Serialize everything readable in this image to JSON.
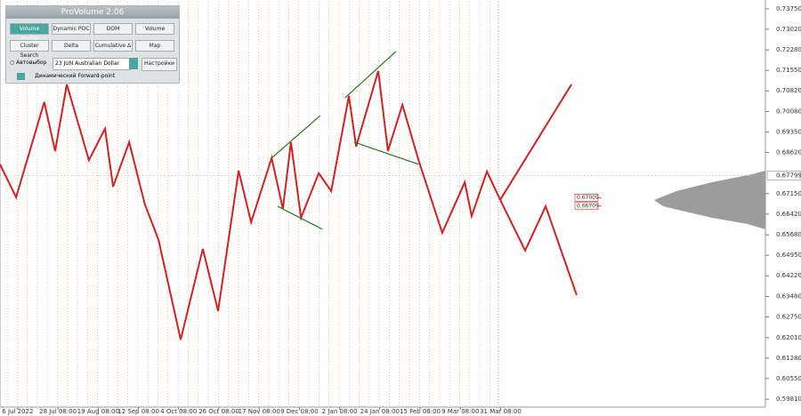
{
  "chart_data": {
    "type": "line",
    "xlim": [
      -0.44,
      18.58
    ],
    "ylim": [
      0.5953,
      0.74
    ],
    "xticks": [
      {
        "value": 0,
        "label": "6 Jul 2022"
      },
      {
        "value": 1,
        "label": "28 Jul 08:00"
      },
      {
        "value": 2,
        "label": "19 Aug 08:00"
      },
      {
        "value": 3,
        "label": "12 Sep 08:00"
      },
      {
        "value": 4,
        "label": "4 Oct 08:00"
      },
      {
        "value": 5,
        "label": "26 Oct 08:00"
      },
      {
        "value": 6,
        "label": "17 Nov 08:00"
      },
      {
        "value": 7,
        "label": "9 Dec 08:00"
      },
      {
        "value": 8,
        "label": "2 Jan 08:00"
      },
      {
        "value": 9,
        "label": "24 Jan 08:00"
      },
      {
        "value": 10,
        "label": "15 Feb 08:00"
      },
      {
        "value": 11,
        "label": "9 Mar 08:00"
      },
      {
        "value": 12,
        "label": "31 Mar 08:00"
      }
    ],
    "yticks": [
      {
        "value": 0.7375,
        "label": "0.73750"
      },
      {
        "value": 0.7302,
        "label": "0.73020"
      },
      {
        "value": 0.7228,
        "label": "0.72280"
      },
      {
        "value": 0.7155,
        "label": "0.71550"
      },
      {
        "value": 0.7082,
        "label": "0.70820"
      },
      {
        "value": 0.7008,
        "label": "0.70080"
      },
      {
        "value": 0.6935,
        "label": "0.69350"
      },
      {
        "value": 0.6862,
        "label": "0.68620"
      },
      {
        "value": 0.6715,
        "label": "0.67150"
      },
      {
        "value": 0.6642,
        "label": "0.66420"
      },
      {
        "value": 0.6568,
        "label": "0.65680"
      },
      {
        "value": 0.6495,
        "label": "0.64950"
      },
      {
        "value": 0.6422,
        "label": "0.64220"
      },
      {
        "value": 0.6348,
        "label": "0.63480"
      },
      {
        "value": 0.6275,
        "label": "0.62750"
      },
      {
        "value": 0.6201,
        "label": "0.62010"
      },
      {
        "value": 0.6128,
        "label": "0.61280"
      },
      {
        "value": 0.6055,
        "label": "0.60550"
      },
      {
        "value": 0.5981,
        "label": "0.59810"
      }
    ],
    "series": [
      {
        "color": "#d42020",
        "x": [
          -0.44,
          -0.04,
          0.66,
          0.93,
          1.22,
          1.77,
          2.17,
          2.37,
          2.77,
          3.16,
          3.5,
          4.05,
          4.6,
          4.98,
          5.49,
          5.8,
          6.31,
          6.59,
          6.79,
          7.04,
          7.48,
          7.79,
          8.23,
          8.41,
          8.96,
          9.2,
          9.56,
          9.96,
          10.55,
          11.11,
          11.28,
          11.66,
          11.99,
          12.61,
          13.12,
          13.89
        ],
        "values": [
          0.682,
          0.6702,
          0.7042,
          0.6867,
          0.7105,
          0.6835,
          0.6947,
          0.674,
          0.6899,
          0.6677,
          0.655,
          0.6194,
          0.6518,
          0.6296,
          0.6797,
          0.6613,
          0.6842,
          0.6661,
          0.6899,
          0.6629,
          0.6788,
          0.6724,
          0.7064,
          0.6883,
          0.7153,
          0.6867,
          0.7032,
          0.6835,
          0.6575,
          0.6756,
          0.6635,
          0.6794,
          0.6693,
          0.6512,
          0.667,
          0.6353
        ]
      },
      {
        "color": "#d42020",
        "x": [
          11.99,
          13.76
        ],
        "values": [
          0.6693,
          0.7105
        ]
      },
      {
        "color": "#1a7a1a",
        "x": [
          6.31,
          7.52
        ],
        "values": [
          0.6842,
          0.6994
        ]
      },
      {
        "color": "#1a7a1a",
        "x": [
          6.46,
          7.57
        ],
        "values": [
          0.667,
          0.6588
        ]
      },
      {
        "color": "#1a7a1a",
        "x": [
          8.14,
          9.4
        ],
        "values": [
          0.7058,
          0.7223
        ]
      },
      {
        "color": "#1a7a1a",
        "x": [
          8.36,
          9.96
        ],
        "values": [
          0.6899,
          0.682
        ]
      }
    ],
    "current_price": 0.67799,
    "levels": [
      0.67009,
      0.66709
    ]
  },
  "panel": {
    "title": "ProVolume 2.06",
    "buttons": [
      "Volume Profile",
      "Dynamic POC",
      "DOM",
      "Volume",
      "Cluster Search",
      "Delta",
      "Cumulative Δ",
      "Map"
    ],
    "auto": "Автовыбор",
    "instrument": "23 JUN Australian Dollar",
    "settings": "Настройки",
    "forward": "Динамический Forward-point"
  }
}
